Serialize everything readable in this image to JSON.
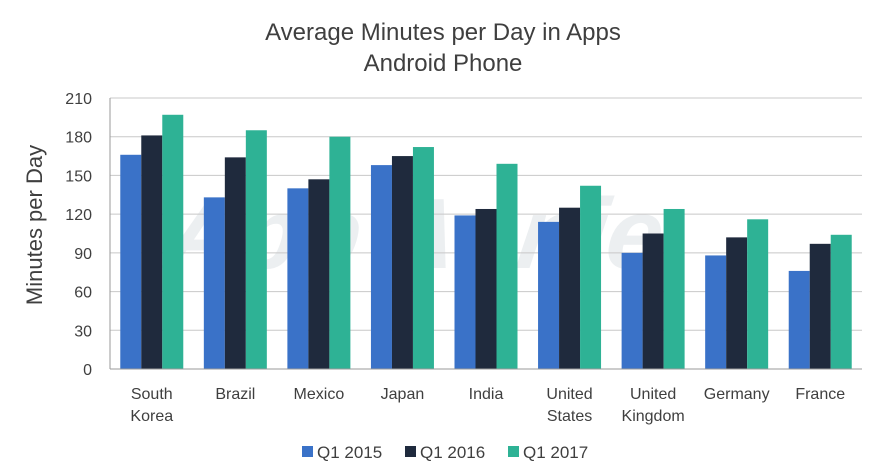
{
  "chart_data": {
    "type": "bar",
    "title": "Average Minutes per Day in Apps",
    "subtitle": "Android Phone",
    "xlabel": "",
    "ylabel": "Minutes per Day",
    "ylim": [
      0,
      210
    ],
    "yticks": [
      0,
      30,
      60,
      90,
      120,
      150,
      180,
      210
    ],
    "grid": true,
    "legend_position": "bottom-center",
    "watermark": "App Annie",
    "categories": [
      [
        "South",
        "Korea"
      ],
      [
        "Brazil"
      ],
      [
        "Mexico"
      ],
      [
        "Japan"
      ],
      [
        "India"
      ],
      [
        "United",
        "States"
      ],
      [
        "United",
        "Kingdom"
      ],
      [
        "Germany"
      ],
      [
        "France"
      ]
    ],
    "series": [
      {
        "name": "Q1 2015",
        "color": "#3a72c8",
        "values": [
          166,
          133,
          140,
          158,
          119,
          114,
          90,
          88,
          76
        ]
      },
      {
        "name": "Q1 2016",
        "color": "#1f2a3d",
        "values": [
          181,
          164,
          147,
          165,
          124,
          125,
          105,
          102,
          97
        ]
      },
      {
        "name": "Q1 2017",
        "color": "#2eb295",
        "values": [
          197,
          185,
          180,
          172,
          159,
          142,
          124,
          116,
          104
        ]
      }
    ]
  }
}
